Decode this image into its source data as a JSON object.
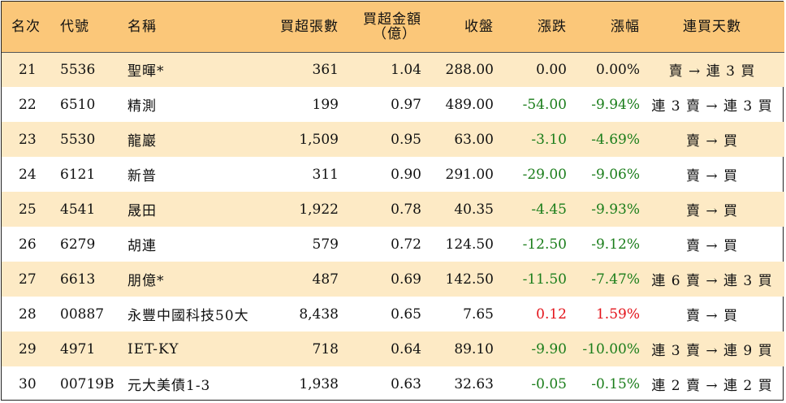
{
  "table": {
    "headers": {
      "rank": "名次",
      "code": "代號",
      "name": "名稱",
      "net_buy_lots": "買超張數",
      "net_buy_amount_line1": "買超金額",
      "net_buy_amount_line2": "（億）",
      "close": "收盤",
      "change": "漲跌",
      "change_pct": "漲幅",
      "consecutive_days": "連買天數"
    },
    "rows": [
      {
        "rank": "21",
        "code": "5536",
        "name": "聖暉*",
        "lots": "361",
        "amount": "1.04",
        "close": "288.00",
        "change": "0.00",
        "pct": "0.00%",
        "days": "賣 → 連 3 買",
        "trend": "flat"
      },
      {
        "rank": "22",
        "code": "6510",
        "name": "精測",
        "lots": "199",
        "amount": "0.97",
        "close": "489.00",
        "change": "-54.00",
        "pct": "-9.94%",
        "days": "連 3 賣 → 連 3 買",
        "trend": "down"
      },
      {
        "rank": "23",
        "code": "5530",
        "name": "龍巖",
        "lots": "1,509",
        "amount": "0.95",
        "close": "63.00",
        "change": "-3.10",
        "pct": "-4.69%",
        "days": "賣 → 買",
        "trend": "down"
      },
      {
        "rank": "24",
        "code": "6121",
        "name": "新普",
        "lots": "311",
        "amount": "0.90",
        "close": "291.00",
        "change": "-29.00",
        "pct": "-9.06%",
        "days": "賣 → 買",
        "trend": "down"
      },
      {
        "rank": "25",
        "code": "4541",
        "name": "晟田",
        "lots": "1,922",
        "amount": "0.78",
        "close": "40.35",
        "change": "-4.45",
        "pct": "-9.93%",
        "days": "賣 → 買",
        "trend": "down"
      },
      {
        "rank": "26",
        "code": "6279",
        "name": "胡連",
        "lots": "579",
        "amount": "0.72",
        "close": "124.50",
        "change": "-12.50",
        "pct": "-9.12%",
        "days": "賣 → 買",
        "trend": "down"
      },
      {
        "rank": "27",
        "code": "6613",
        "name": "朋億*",
        "lots": "487",
        "amount": "0.69",
        "close": "142.50",
        "change": "-11.50",
        "pct": "-7.47%",
        "days": "連 6 賣 → 連 3 買",
        "trend": "down"
      },
      {
        "rank": "28",
        "code": "00887",
        "name": "永豐中國科技50大",
        "lots": "8,438",
        "amount": "0.65",
        "close": "7.65",
        "change": "0.12",
        "pct": "1.59%",
        "days": "賣 → 買",
        "trend": "up"
      },
      {
        "rank": "29",
        "code": "4971",
        "name": "IET-KY",
        "lots": "718",
        "amount": "0.64",
        "close": "89.10",
        "change": "-9.90",
        "pct": "-10.00%",
        "days": "連 3 賣 → 連 9 買",
        "trend": "down"
      },
      {
        "rank": "30",
        "code": "00719B",
        "name": "元大美債1-3",
        "lots": "1,938",
        "amount": "0.63",
        "close": "32.63",
        "change": "-0.05",
        "pct": "-0.15%",
        "days": "連 2 賣 → 連 2 買",
        "trend": "down"
      }
    ]
  },
  "colors": {
    "header_bg": "#fbc779",
    "alt_row_bg": "#fdeac5",
    "down": "#1a7d1a",
    "up": "#e3141b"
  }
}
